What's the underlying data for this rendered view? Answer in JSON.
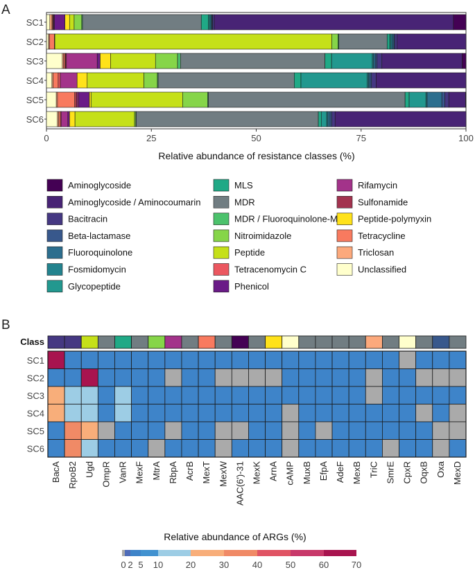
{
  "panel_a": {
    "label": "A",
    "chart_data": {
      "type": "bar",
      "orientation": "horizontal-stacked",
      "xlabel": "Relative abundance of resistance classes (%)",
      "xlim": [
        0,
        100
      ],
      "xticks": [
        0,
        25,
        50,
        75,
        100
      ],
      "categories": [
        "SC1",
        "SC2",
        "SC3",
        "SC4",
        "SC5",
        "SC6"
      ],
      "series": [
        {
          "name": "Unclassified",
          "color": "#FFFFCC",
          "values": [
            0.8,
            0.5,
            3.8,
            1.3,
            2.4,
            2.6
          ]
        },
        {
          "name": "Triclosan",
          "color": "#FCA97C",
          "values": [
            0.5,
            0.2,
            0.3,
            0.3,
            0.3,
            0.3
          ]
        },
        {
          "name": "Tetracycline",
          "color": "#F87A5F",
          "values": [
            0.2,
            1.2,
            0.3,
            1.2,
            4.2,
            0.4
          ]
        },
        {
          "name": "Tetracenomycin C",
          "color": "#EB5760",
          "values": [
            0.1,
            0.1,
            0.2,
            0.5,
            0.3,
            0.2
          ]
        },
        {
          "name": "Sulfonamide",
          "color": "#A3334F",
          "values": [
            0.1,
            0,
            0.2,
            0,
            0.3,
            0
          ]
        },
        {
          "name": "Rifamycin",
          "color": "#A3338A",
          "values": [
            0.2,
            0,
            7.4,
            4.0,
            0.4,
            1.6
          ]
        },
        {
          "name": "Phenicol",
          "color": "#6A1B87",
          "values": [
            2.5,
            0,
            0.7,
            0,
            2.6,
            0.4
          ]
        },
        {
          "name": "Peptide-polymyxin",
          "color": "#FFE21A",
          "values": [
            1.1,
            0,
            2.5,
            2.4,
            0.4,
            1.3
          ]
        },
        {
          "name": "Peptide",
          "color": "#C5E019",
          "values": [
            1.1,
            66.0,
            10.8,
            13.5,
            22.4,
            14.2
          ]
        },
        {
          "name": "Nitroimidazole",
          "color": "#86D549",
          "values": [
            1.8,
            1.5,
            5.3,
            3.2,
            6.1,
            0.3
          ]
        },
        {
          "name": "MDR / Fluoroquinolone-MDR",
          "color": "#4CC26C",
          "values": [
            0.2,
            0.2,
            0.7,
            0.2,
            0.2,
            0.1
          ]
        },
        {
          "name": "MDR",
          "color": "#717D82",
          "values": [
            28.3,
            11.5,
            34.7,
            32.4,
            48.1,
            43.4
          ]
        },
        {
          "name": "MLS",
          "color": "#20A986",
          "values": [
            1.7,
            0.6,
            1.6,
            1.6,
            1.0,
            0.7
          ]
        },
        {
          "name": "Glycopeptide",
          "color": "#22988F",
          "values": [
            0.3,
            0.3,
            9.8,
            15.8,
            4.1,
            1.3
          ]
        },
        {
          "name": "Fosmidomycin",
          "color": "#23838E",
          "values": [
            0.3,
            0.3,
            0.3,
            0.3,
            0.3,
            0.3
          ]
        },
        {
          "name": "Fluoroquinolone",
          "color": "#2C6E8E",
          "values": [
            0.2,
            0.4,
            0.4,
            0.3,
            3.6,
            0.5
          ]
        },
        {
          "name": "Beta-lactamase",
          "color": "#38588C",
          "values": [
            0.2,
            0.2,
            0.4,
            0.4,
            0.7,
            0.4
          ]
        },
        {
          "name": "Bacitracin",
          "color": "#453882",
          "values": [
            0.4,
            0.6,
            1.2,
            1.1,
            1.0,
            0.8
          ]
        },
        {
          "name": "Aminoglycoside / Aminocoumarin",
          "color": "#482475",
          "values": [
            57.0,
            16.4,
            19.3,
            21.4,
            4.1,
            31.2
          ]
        },
        {
          "name": "Aminoglycoside",
          "color": "#440154",
          "values": [
            3.0,
            0,
            0.9,
            0,
            0.1,
            0
          ]
        }
      ]
    }
  },
  "legend": {
    "columns": [
      [
        {
          "name": "Aminoglycoside",
          "color": "#440154"
        },
        {
          "name": "Aminoglycoside / Aminocoumarin",
          "color": "#482475"
        },
        {
          "name": "Bacitracin",
          "color": "#453882"
        },
        {
          "name": "Beta-lactamase",
          "color": "#38588C"
        },
        {
          "name": "Fluoroquinolone",
          "color": "#2C6E8E"
        },
        {
          "name": "Fosmidomycin",
          "color": "#23838E"
        },
        {
          "name": "Glycopeptide",
          "color": "#22988F"
        }
      ],
      [
        {
          "name": "MLS",
          "color": "#20A986"
        },
        {
          "name": "MDR",
          "color": "#717D82"
        },
        {
          "name": "MDR / Fluoroquinolone-MDR",
          "color": "#4CC26C"
        },
        {
          "name": "Nitroimidazole",
          "color": "#86D549"
        },
        {
          "name": "Peptide",
          "color": "#C5E019"
        },
        {
          "name": "Tetracenomycin C",
          "color": "#EB5760"
        },
        {
          "name": "Phenicol",
          "color": "#6A1B87"
        }
      ],
      [
        {
          "name": "Rifamycin",
          "color": "#A3338A"
        },
        {
          "name": "Sulfonamide",
          "color": "#A3334F"
        },
        {
          "name": "Peptide-polymyxin",
          "color": "#FFE21A"
        },
        {
          "name": "Tetracycline",
          "color": "#F87A5F"
        },
        {
          "name": "Triclosan",
          "color": "#FCA97C"
        },
        {
          "name": "Unclassified",
          "color": "#FFFFCC"
        }
      ]
    ]
  },
  "panel_b": {
    "label": "B",
    "class_row_label": "Class",
    "chart_data": {
      "type": "heatmap",
      "xlabel": "Relative abundance of ARGs (%)",
      "rows": [
        "SC1",
        "SC2",
        "SC3",
        "SC4",
        "SC5",
        "SC6"
      ],
      "columns": [
        "BacA",
        "RpoB2",
        "Ugd",
        "OmpR",
        "VanR",
        "MexF",
        "MtrA",
        "RbpA",
        "AcrB",
        "MexT",
        "MexW",
        "AAC(6')-31",
        "MexK",
        "ArnA",
        "cAMP",
        "MuxB",
        "EfpA",
        "AdeF",
        "MexB",
        "TriC",
        "SmrE",
        "CpxR",
        "OqxB",
        "Oxa",
        "MexD"
      ],
      "column_class_colors": [
        "#453882",
        "#453882",
        "#C5E019",
        "#717D82",
        "#20A986",
        "#717D82",
        "#86D549",
        "#A3338A",
        "#717D82",
        "#F87A5F",
        "#717D82",
        "#440154",
        "#717D82",
        "#FFE21A",
        "#FFFFCC",
        "#717D82",
        "#717D82",
        "#717D82",
        "#717D82",
        "#FCA97C",
        "#717D82",
        "#FFFFCC",
        "#717D82",
        "#38588C",
        "#717D82"
      ],
      "values": [
        [
          62,
          5,
          5,
          3,
          5,
          3,
          3,
          3,
          3,
          5,
          5,
          5,
          5,
          5,
          5,
          5,
          5,
          5,
          5,
          5,
          5,
          0,
          5,
          5,
          5
        ],
        [
          3,
          5,
          62,
          5,
          5,
          5,
          3,
          0,
          3,
          3,
          0,
          0,
          0,
          0,
          5,
          3,
          5,
          5,
          5,
          0,
          5,
          5,
          0,
          0,
          0
        ],
        [
          24,
          12,
          12,
          3,
          12,
          3,
          3,
          3,
          3,
          3,
          5,
          5,
          3,
          3,
          3,
          5,
          5,
          5,
          5,
          0,
          5,
          5,
          3,
          3,
          5
        ],
        [
          24,
          12,
          12,
          5,
          12,
          3,
          3,
          3,
          3,
          5,
          5,
          5,
          5,
          5,
          0,
          5,
          5,
          5,
          3,
          5,
          5,
          5,
          0,
          5,
          0
        ],
        [
          5,
          32,
          24,
          0,
          3,
          5,
          3,
          0,
          3,
          3,
          0,
          0,
          3,
          5,
          0,
          5,
          0,
          5,
          5,
          5,
          5,
          5,
          5,
          0,
          0
        ],
        [
          5,
          32,
          12,
          3,
          3,
          3,
          0,
          3,
          3,
          3,
          0,
          5,
          5,
          5,
          0,
          5,
          5,
          5,
          5,
          5,
          0,
          3,
          5,
          0,
          5
        ]
      ],
      "zero_color": "#AAAAAA",
      "color_scale": [
        {
          "from": 0,
          "to": 2,
          "color": "#4F6CB8"
        },
        {
          "from": 2,
          "to": 5,
          "color": "#3E84C9"
        },
        {
          "from": 5,
          "to": 10,
          "color": "#4292D0"
        },
        {
          "from": 10,
          "to": 20,
          "color": "#9DCDE5"
        },
        {
          "from": 20,
          "to": 30,
          "color": "#F8AE7A"
        },
        {
          "from": 30,
          "to": 40,
          "color": "#F08A66"
        },
        {
          "from": 40,
          "to": 50,
          "color": "#E05464"
        },
        {
          "from": 50,
          "to": 60,
          "color": "#C8396A"
        },
        {
          "from": 60,
          "to": 70,
          "color": "#A8144F"
        }
      ],
      "colorbar_ticks": [
        "0",
        "2",
        "5",
        "10",
        "20",
        "30",
        "40",
        "50",
        "60",
        "70"
      ]
    }
  }
}
